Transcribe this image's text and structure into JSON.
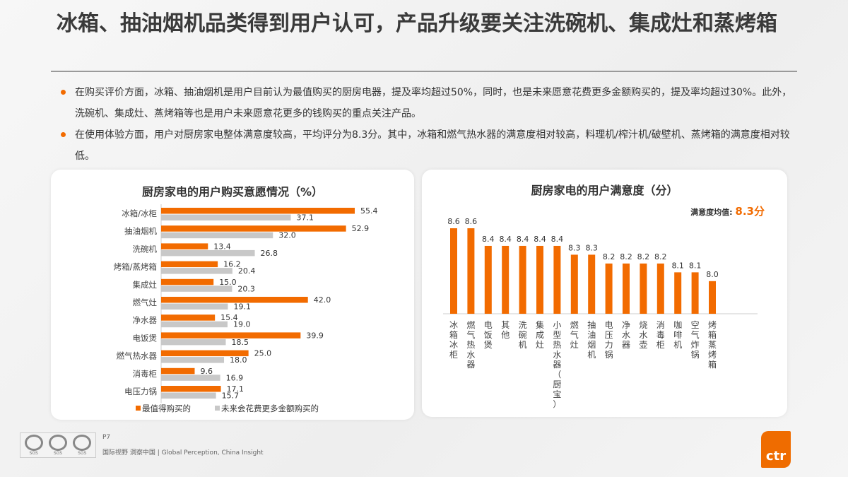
{
  "title": "冰箱、抽油烟机品类得到用户认可，产品升级要关注洗碗机、集成灶和蒸烤箱",
  "bullets": [
    "在购买评价方面，冰箱、抽油烟机是用户目前认为最值购买的厨房电器，提及率均超过50%，同时，也是未来愿意花费更多金额购买的，提及率均超过30%。此外，洗碗机、集成灶、蒸烤箱等也是用户未来愿意花更多的钱购买的重点关注产品。",
    "在使用体验方面，用户对厨房家电整体满意度较高，平均评分为8.3分。其中，冰箱和燃气热水器的满意度相对较高，料理机/榨汁机/破壁机、蒸烤箱的满意度相对较低。"
  ],
  "colors": {
    "orange": "#f26b00",
    "gray": "#c8c8c8"
  },
  "chart_data": [
    {
      "type": "bar",
      "orientation": "horizontal",
      "title": "厨房家电的用户购买意愿情况（%）",
      "categories": [
        "冰箱/冰柜",
        "抽油烟机",
        "洗碗机",
        "烤箱/蒸烤箱",
        "集成灶",
        "燃气灶",
        "净水器",
        "电饭煲",
        "燃气热水器",
        "消毒柜",
        "电压力锅"
      ],
      "series": [
        {
          "name": "最值得购买的",
          "color": "#f26b00",
          "values": [
            55.4,
            52.9,
            13.4,
            16.2,
            15.0,
            42.0,
            15.4,
            39.9,
            25.0,
            9.6,
            17.1
          ]
        },
        {
          "name": "未来会花费更多金额购买的",
          "color": "#c8c8c8",
          "values": [
            37.1,
            32.0,
            26.8,
            20.4,
            20.3,
            19.1,
            19.0,
            18.5,
            18.0,
            16.9,
            15.7
          ]
        }
      ],
      "xlim": [
        0,
        60
      ],
      "legend": "bottom",
      "grid": false
    },
    {
      "type": "bar",
      "title": "厨房家电的用户满意度（分）",
      "annotation_label": "满意度均值:",
      "annotation_value": "8.3分",
      "categories": [
        "冰箱/冰柜",
        "燃气热水器",
        "电饭煲",
        "其他",
        "洗碗机",
        "集成灶",
        "小型热水器（厨宝）",
        "燃气灶",
        "抽油烟机",
        "电压力锅",
        "净水器",
        "烧水壶",
        "消毒柜",
        "咖啡机",
        "空气炸锅",
        "烤箱/蒸烤箱"
      ],
      "values": [
        8.6,
        8.6,
        8.4,
        8.4,
        8.4,
        8.4,
        8.4,
        8.3,
        8.3,
        8.2,
        8.2,
        8.2,
        8.2,
        8.1,
        8.1,
        8.0
      ],
      "ylim": [
        7.63,
        8.7
      ],
      "color": "#f26b00",
      "grid": false
    }
  ],
  "footer": {
    "page": "P7",
    "slogan": "国际视野 洞察中国 | Global Perception, China Insight",
    "logo": "ctr",
    "cert": "SGS"
  }
}
